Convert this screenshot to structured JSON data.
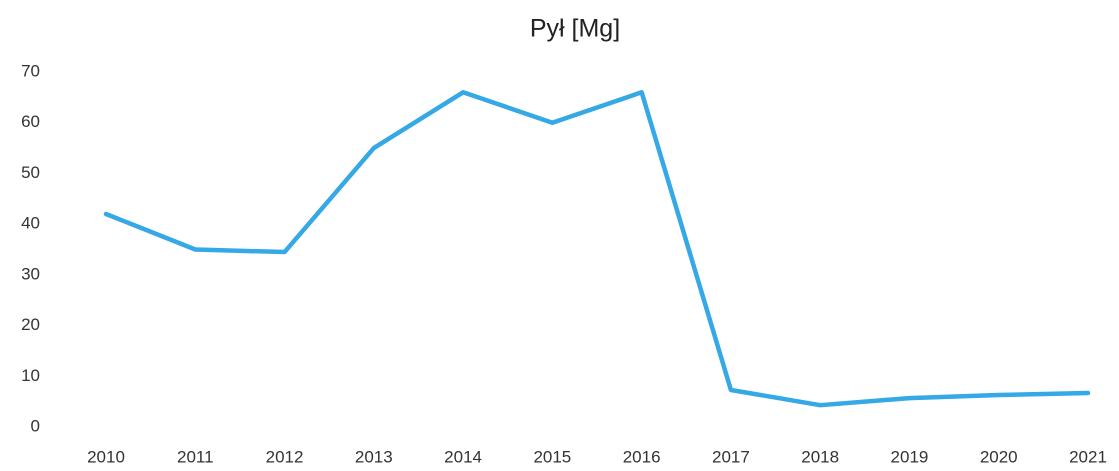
{
  "chart_data": {
    "type": "line",
    "title": "Pył [Mg]",
    "categories": [
      "2010",
      "2011",
      "2012",
      "2013",
      "2014",
      "2015",
      "2016",
      "2017",
      "2018",
      "2019",
      "2020",
      "2021"
    ],
    "values": [
      42,
      35,
      34.5,
      55,
      66,
      60,
      66,
      7.3,
      4.3,
      5.7,
      6.3,
      6.7
    ],
    "color": "#35a8e6",
    "ylim": [
      0,
      70
    ],
    "yticks": [
      0,
      10,
      20,
      30,
      40,
      50,
      60,
      70
    ],
    "grid": false
  }
}
